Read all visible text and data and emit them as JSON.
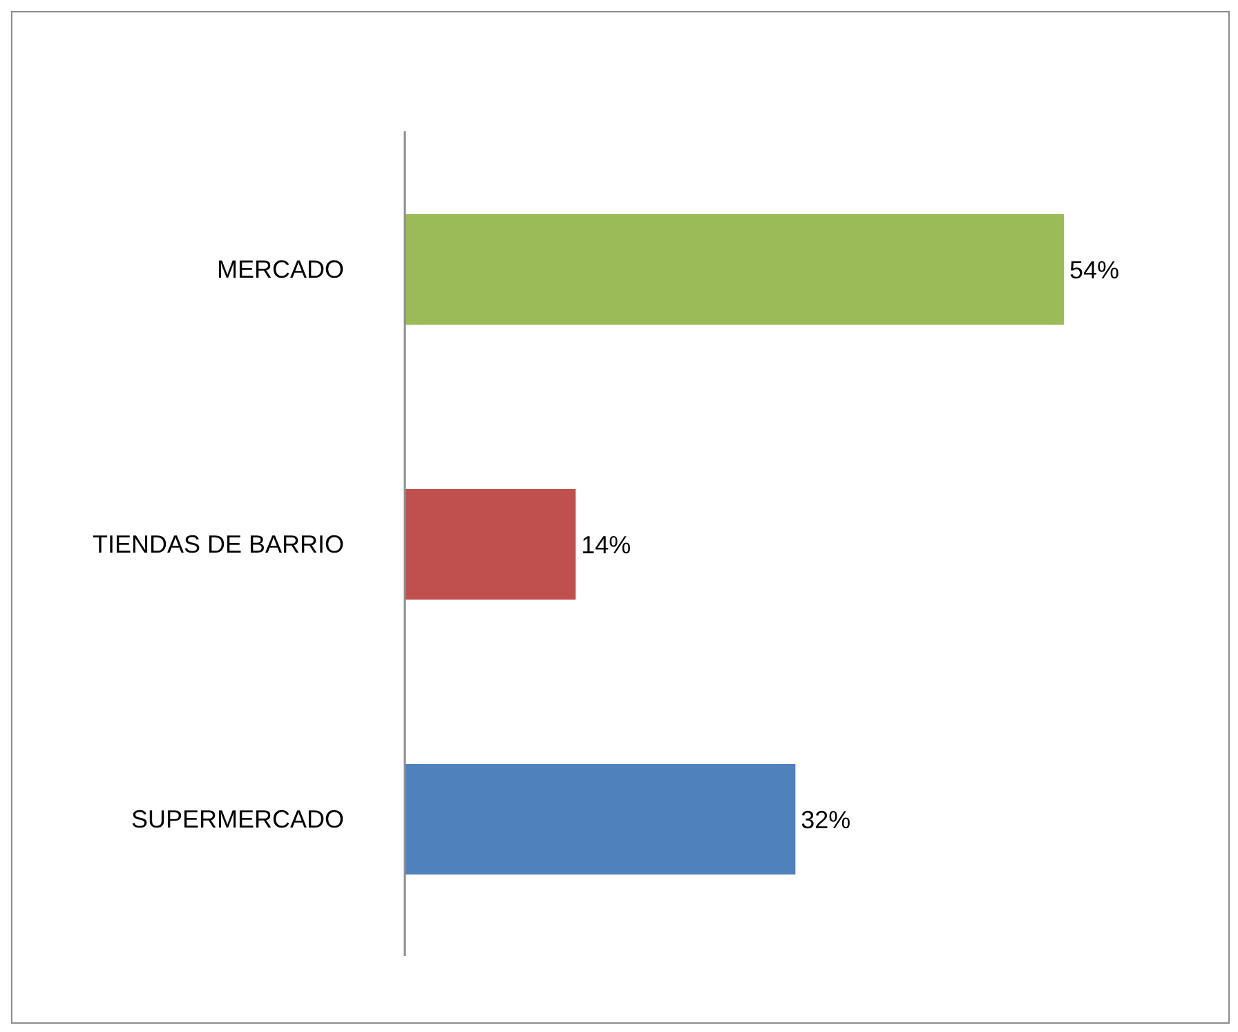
{
  "chart_data": {
    "type": "bar",
    "orientation": "horizontal",
    "categories": [
      "MERCADO",
      "TIENDAS DE BARRIO",
      "SUPERMERCADO"
    ],
    "values": [
      54,
      14,
      32
    ],
    "colors": [
      "#9bbb59",
      "#c0504d",
      "#4f81bd"
    ],
    "value_labels": [
      "54%",
      "14%",
      "32%"
    ]
  }
}
